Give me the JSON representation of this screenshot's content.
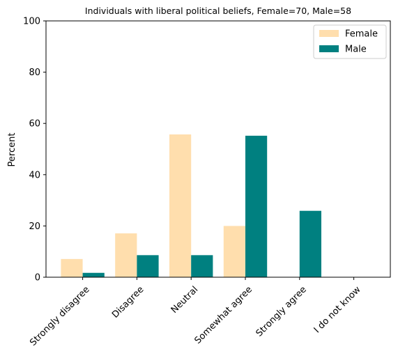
{
  "chart_data": {
    "type": "bar",
    "title": "Individuals with liberal political beliefs, Female=70, Male=58",
    "xlabel": "",
    "ylabel": "Percent",
    "ylim": [
      0,
      100
    ],
    "yticks": [
      0,
      20,
      40,
      60,
      80,
      100
    ],
    "grid": false,
    "legend_position": "top-right",
    "categories": [
      "Strongly disagree",
      "Disagree",
      "Neutral",
      "Somewhat agree",
      "Strongly agree",
      "I do not know"
    ],
    "series": [
      {
        "name": "Female",
        "color": "#ffdead",
        "values": [
          7.1,
          17.1,
          55.7,
          20.0,
          0,
          0
        ]
      },
      {
        "name": "Male",
        "color": "#008080",
        "values": [
          1.7,
          8.6,
          8.6,
          55.2,
          25.9,
          0
        ]
      }
    ]
  }
}
